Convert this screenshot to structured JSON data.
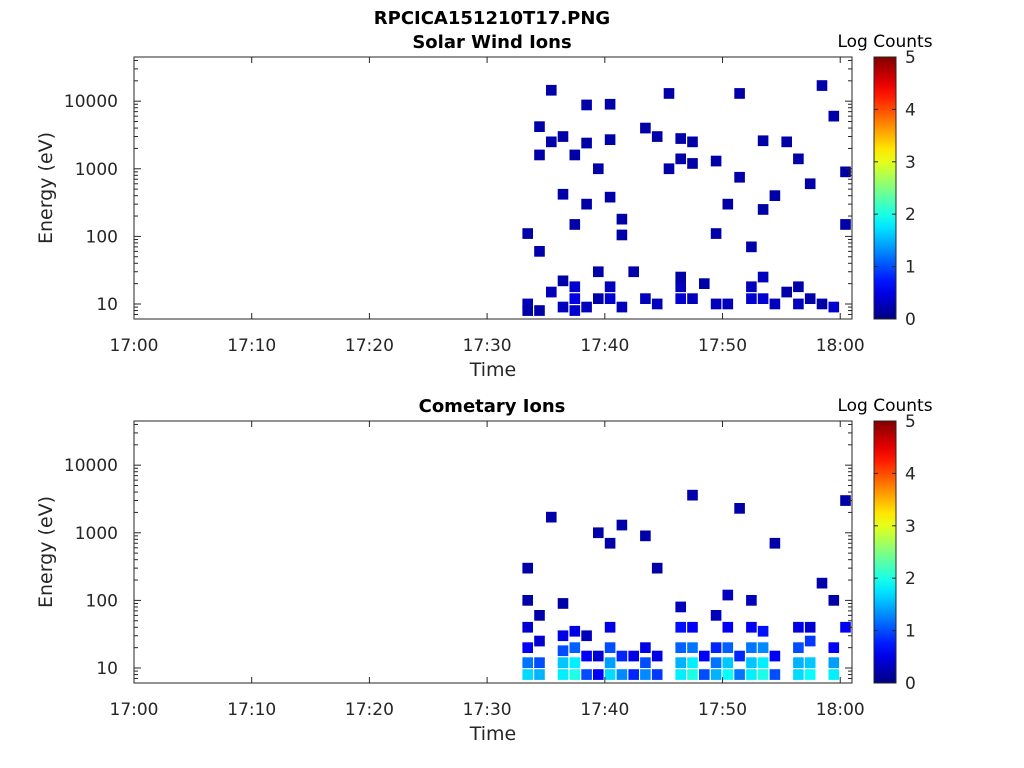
{
  "figure": {
    "title": "RPCICA151210T17.PNG"
  },
  "colors": {
    "axis": "#262626",
    "colormap": "jet"
  },
  "chart_data": [
    {
      "type": "heatmap",
      "title": "Solar Wind Ions",
      "xlabel": "Time",
      "ylabel": "Energy (eV)",
      "y_scale": "log",
      "ylim": [
        6,
        45000
      ],
      "xlim": [
        "17:00",
        "18:01"
      ],
      "x_ticks": [
        "17:00",
        "17:10",
        "17:20",
        "17:30",
        "17:40",
        "17:50",
        "18:00"
      ],
      "y_ticks": [
        "10",
        "100",
        "1000",
        "10000"
      ],
      "colorbar": {
        "label": "Log Counts",
        "range": [
          0,
          5
        ],
        "ticks": [
          "0",
          "1",
          "2",
          "3",
          "4",
          "5"
        ]
      },
      "grid": false,
      "cells": [
        [
          "17:33",
          10,
          0.3
        ],
        [
          "17:33",
          8,
          0.2
        ],
        [
          "17:33",
          110,
          0.2
        ],
        [
          "17:34",
          60,
          0.2
        ],
        [
          "17:34",
          8,
          0.2
        ],
        [
          "17:34",
          4200,
          0.2
        ],
        [
          "17:34",
          1600,
          0.2
        ],
        [
          "17:35",
          2500,
          0.2
        ],
        [
          "17:35",
          14500,
          0.2
        ],
        [
          "17:35",
          15,
          0.3
        ],
        [
          "17:36",
          9,
          0.3
        ],
        [
          "17:36",
          22,
          0.2
        ],
        [
          "17:36",
          3000,
          0.2
        ],
        [
          "17:36",
          420,
          0.2
        ],
        [
          "17:37",
          8,
          0.4
        ],
        [
          "17:37",
          12,
          0.5
        ],
        [
          "17:37",
          18,
          0.4
        ],
        [
          "17:37",
          150,
          0.2
        ],
        [
          "17:37",
          1600,
          0.2
        ],
        [
          "17:38",
          9,
          0.3
        ],
        [
          "17:38",
          8800,
          0.2
        ],
        [
          "17:38",
          300,
          0.2
        ],
        [
          "17:38",
          2400,
          0.2
        ],
        [
          "17:39",
          1000,
          0.2
        ],
        [
          "17:39",
          12,
          0.2
        ],
        [
          "17:39",
          30,
          0.2
        ],
        [
          "17:40",
          12,
          0.4
        ],
        [
          "17:40",
          18,
          0.3
        ],
        [
          "17:40",
          9000,
          0.2
        ],
        [
          "17:40",
          2700,
          0.2
        ],
        [
          "17:40",
          380,
          0.2
        ],
        [
          "17:41",
          9,
          0.3
        ],
        [
          "17:41",
          105,
          0.2
        ],
        [
          "17:41",
          180,
          0.2
        ],
        [
          "17:42",
          30,
          0.2
        ],
        [
          "17:43",
          12,
          0.3
        ],
        [
          "17:43",
          4000,
          0.2
        ],
        [
          "17:44",
          10,
          0.3
        ],
        [
          "17:44",
          3000,
          0.2
        ],
        [
          "17:45",
          1000,
          0.2
        ],
        [
          "17:45",
          13000,
          0.2
        ],
        [
          "17:46",
          12,
          0.4
        ],
        [
          "17:46",
          18,
          0.3
        ],
        [
          "17:46",
          25,
          0.2
        ],
        [
          "17:46",
          1400,
          0.2
        ],
        [
          "17:46",
          2800,
          0.2
        ],
        [
          "17:47",
          12,
          0.3
        ],
        [
          "17:47",
          2500,
          0.2
        ],
        [
          "17:47",
          1200,
          0.2
        ],
        [
          "17:48",
          20,
          0.2
        ],
        [
          "17:49",
          10,
          0.3
        ],
        [
          "17:49",
          110,
          0.2
        ],
        [
          "17:49",
          1300,
          0.2
        ],
        [
          "17:50",
          10,
          0.3
        ],
        [
          "17:50",
          300,
          0.2
        ],
        [
          "17:51",
          13000,
          0.2
        ],
        [
          "17:51",
          750,
          0.2
        ],
        [
          "17:52",
          12,
          0.4
        ],
        [
          "17:52",
          18,
          0.3
        ],
        [
          "17:52",
          70,
          0.2
        ],
        [
          "17:53",
          12,
          0.4
        ],
        [
          "17:53",
          25,
          0.3
        ],
        [
          "17:53",
          250,
          0.2
        ],
        [
          "17:53",
          2600,
          0.2
        ],
        [
          "17:54",
          10,
          0.3
        ],
        [
          "17:54",
          400,
          0.2
        ],
        [
          "17:55",
          15,
          0.2
        ],
        [
          "17:55",
          2500,
          0.2
        ],
        [
          "17:56",
          10,
          0.3
        ],
        [
          "17:56",
          18,
          0.2
        ],
        [
          "17:56",
          1400,
          0.2
        ],
        [
          "17:57",
          12,
          0.2
        ],
        [
          "17:57",
          600,
          0.2
        ],
        [
          "17:58",
          10,
          0.2
        ],
        [
          "17:58",
          17000,
          0.2
        ],
        [
          "17:59",
          9,
          0.4
        ],
        [
          "17:59",
          6000,
          0.2
        ],
        [
          "18:00",
          900,
          0.2
        ],
        [
          "18:00",
          150,
          0.2
        ]
      ]
    },
    {
      "type": "heatmap",
      "title": "Cometary Ions",
      "xlabel": "Time",
      "ylabel": "Energy (eV)",
      "y_scale": "log",
      "ylim": [
        6,
        45000
      ],
      "xlim": [
        "17:00",
        "18:01"
      ],
      "x_ticks": [
        "17:00",
        "17:10",
        "17:20",
        "17:30",
        "17:40",
        "17:50",
        "18:00"
      ],
      "y_ticks": [
        "10",
        "100",
        "1000",
        "10000"
      ],
      "colorbar": {
        "label": "Log Counts",
        "range": [
          0,
          5
        ],
        "ticks": [
          "0",
          "1",
          "2",
          "3",
          "4",
          "5"
        ]
      },
      "grid": false,
      "cells": [
        [
          "17:33",
          8,
          1.7
        ],
        [
          "17:33",
          12,
          1.2
        ],
        [
          "17:33",
          20,
          0.6
        ],
        [
          "17:33",
          40,
          0.4
        ],
        [
          "17:33",
          100,
          0.2
        ],
        [
          "17:33",
          300,
          0.2
        ],
        [
          "17:34",
          8,
          1.5
        ],
        [
          "17:34",
          12,
          1.0
        ],
        [
          "17:34",
          25,
          0.4
        ],
        [
          "17:34",
          60,
          0.2
        ],
        [
          "17:35",
          1700,
          0.2
        ],
        [
          "17:36",
          8,
          1.8
        ],
        [
          "17:36",
          12,
          1.6
        ],
        [
          "17:36",
          18,
          1.0
        ],
        [
          "17:36",
          30,
          0.5
        ],
        [
          "17:36",
          90,
          0.2
        ],
        [
          "17:37",
          8,
          2.0
        ],
        [
          "17:37",
          12,
          1.8
        ],
        [
          "17:37",
          20,
          1.1
        ],
        [
          "17:37",
          35,
          0.5
        ],
        [
          "17:38",
          8,
          1.0
        ],
        [
          "17:38",
          15,
          0.6
        ],
        [
          "17:38",
          30,
          0.3
        ],
        [
          "17:39",
          8,
          0.6
        ],
        [
          "17:39",
          15,
          0.4
        ],
        [
          "17:39",
          1000,
          0.2
        ],
        [
          "17:40",
          8,
          1.7
        ],
        [
          "17:40",
          12,
          1.4
        ],
        [
          "17:40",
          20,
          1.0
        ],
        [
          "17:40",
          40,
          0.5
        ],
        [
          "17:40",
          700,
          0.2
        ],
        [
          "17:41",
          8,
          1.3
        ],
        [
          "17:41",
          15,
          0.8
        ],
        [
          "17:41",
          1300,
          0.2
        ],
        [
          "17:42",
          8,
          0.8
        ],
        [
          "17:42",
          15,
          0.5
        ],
        [
          "17:43",
          8,
          1.3
        ],
        [
          "17:43",
          12,
          1.0
        ],
        [
          "17:43",
          20,
          0.5
        ],
        [
          "17:43",
          900,
          0.2
        ],
        [
          "17:44",
          8,
          0.9
        ],
        [
          "17:44",
          15,
          0.5
        ],
        [
          "17:44",
          300,
          0.2
        ],
        [
          "17:46",
          8,
          1.8
        ],
        [
          "17:46",
          12,
          1.5
        ],
        [
          "17:46",
          20,
          1.1
        ],
        [
          "17:46",
          40,
          0.7
        ],
        [
          "17:46",
          80,
          0.3
        ],
        [
          "17:47",
          8,
          2.0
        ],
        [
          "17:47",
          12,
          1.8
        ],
        [
          "17:47",
          20,
          1.2
        ],
        [
          "17:47",
          40,
          0.6
        ],
        [
          "17:47",
          3600,
          0.2
        ],
        [
          "17:48",
          8,
          1.0
        ],
        [
          "17:48",
          15,
          0.6
        ],
        [
          "17:49",
          8,
          1.5
        ],
        [
          "17:49",
          12,
          1.2
        ],
        [
          "17:49",
          20,
          0.8
        ],
        [
          "17:49",
          60,
          0.3
        ],
        [
          "17:50",
          8,
          1.9
        ],
        [
          "17:50",
          12,
          1.6
        ],
        [
          "17:50",
          20,
          1.1
        ],
        [
          "17:50",
          40,
          0.6
        ],
        [
          "17:50",
          120,
          0.3
        ],
        [
          "17:51",
          8,
          1.2
        ],
        [
          "17:51",
          15,
          0.8
        ],
        [
          "17:51",
          2300,
          0.2
        ],
        [
          "17:52",
          8,
          1.8
        ],
        [
          "17:52",
          12,
          1.6
        ],
        [
          "17:52",
          20,
          1.2
        ],
        [
          "17:52",
          40,
          0.6
        ],
        [
          "17:52",
          100,
          0.3
        ],
        [
          "17:53",
          8,
          2.0
        ],
        [
          "17:53",
          12,
          1.8
        ],
        [
          "17:53",
          20,
          1.3
        ],
        [
          "17:53",
          35,
          0.7
        ],
        [
          "17:54",
          8,
          1.0
        ],
        [
          "17:54",
          15,
          0.6
        ],
        [
          "17:54",
          700,
          0.2
        ],
        [
          "17:56",
          8,
          1.7
        ],
        [
          "17:56",
          12,
          1.5
        ],
        [
          "17:56",
          20,
          1.0
        ],
        [
          "17:56",
          40,
          0.5
        ],
        [
          "17:57",
          8,
          1.9
        ],
        [
          "17:57",
          12,
          1.6
        ],
        [
          "17:57",
          25,
          0.9
        ],
        [
          "17:57",
          40,
          0.4
        ],
        [
          "17:58",
          180,
          0.2
        ],
        [
          "17:59",
          8,
          1.8
        ],
        [
          "17:59",
          12,
          1.4
        ],
        [
          "17:59",
          20,
          0.6
        ],
        [
          "17:59",
          100,
          0.2
        ],
        [
          "18:00",
          40,
          0.6
        ],
        [
          "18:00",
          3000,
          0.2
        ]
      ]
    }
  ]
}
